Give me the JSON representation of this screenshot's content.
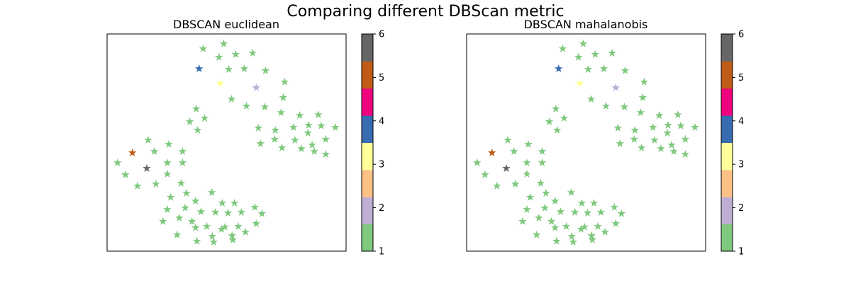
{
  "figure": {
    "suptitle": "Comparing different DBScan metric"
  },
  "chart_data": [
    {
      "type": "scatter",
      "title": "DBSCAN euclidean",
      "marker": "star",
      "xlim": [
        0,
        100
      ],
      "ylim": [
        0,
        100
      ],
      "xticks": [],
      "yticks": [],
      "colorbar": {
        "min": 1,
        "max": 6,
        "ticks": [
          "1",
          "2",
          "3",
          "4",
          "5",
          "6"
        ],
        "colors": [
          "#7fc97f",
          "#beaed4",
          "#fdc086",
          "#ffff99",
          "#386cb0",
          "#f0027f",
          "#bf5b17",
          "#666666"
        ]
      },
      "points": [
        [
          40.2,
          93.2,
          1
        ],
        [
          48.8,
          95.5,
          1
        ],
        [
          46.8,
          89.3,
          1
        ],
        [
          53.8,
          90.6,
          1
        ],
        [
          60.9,
          91.2,
          1
        ],
        [
          50.9,
          83.7,
          1
        ],
        [
          57.4,
          84.0,
          1
        ],
        [
          66.3,
          83.1,
          1
        ],
        [
          74.3,
          77.9,
          1
        ],
        [
          73.7,
          70.7,
          1
        ],
        [
          52.1,
          70.0,
          1
        ],
        [
          58.3,
          66.8,
          1
        ],
        [
          66.0,
          66.4,
          1
        ],
        [
          72.8,
          63.8,
          1
        ],
        [
          80.6,
          62.5,
          1
        ],
        [
          88.4,
          62.8,
          1
        ],
        [
          84.3,
          58.0,
          1
        ],
        [
          89.6,
          57.7,
          1
        ],
        [
          95.5,
          57.0,
          1
        ],
        [
          70.4,
          55.7,
          1
        ],
        [
          63.3,
          56.7,
          1
        ],
        [
          78.0,
          57.0,
          1
        ],
        [
          84.0,
          54.4,
          1
        ],
        [
          70.1,
          51.5,
          1
        ],
        [
          78.6,
          51.1,
          1
        ],
        [
          81.3,
          47.2,
          1
        ],
        [
          85.8,
          48.9,
          1
        ],
        [
          91.5,
          51.5,
          1
        ],
        [
          64.2,
          49.5,
          1
        ],
        [
          73.2,
          47.6,
          1
        ],
        [
          86.7,
          45.9,
          1
        ],
        [
          91.5,
          44.6,
          1
        ],
        [
          37.3,
          65.5,
          1
        ],
        [
          40.8,
          61.2,
          1
        ],
        [
          34.6,
          59.6,
          1
        ],
        [
          37.9,
          55.7,
          1
        ],
        [
          17.2,
          51.1,
          1
        ],
        [
          25.8,
          49.2,
          1
        ],
        [
          19.8,
          45.9,
          1
        ],
        [
          31.6,
          45.9,
          1
        ],
        [
          4.4,
          40.7,
          1
        ],
        [
          25.2,
          40.7,
          1
        ],
        [
          31.6,
          40.7,
          1
        ],
        [
          7.7,
          35.2,
          1
        ],
        [
          25.2,
          35.5,
          1
        ],
        [
          12.7,
          30.0,
          1
        ],
        [
          20.4,
          30.9,
          1
        ],
        [
          31.0,
          31.3,
          1
        ],
        [
          26.6,
          24.8,
          1
        ],
        [
          33.2,
          26.7,
          1
        ],
        [
          43.8,
          27.0,
          1
        ],
        [
          37.0,
          23.1,
          1
        ],
        [
          48.2,
          22.1,
          1
        ],
        [
          53.3,
          22.1,
          1
        ],
        [
          25.2,
          19.2,
          1
        ],
        [
          32.7,
          19.9,
          1
        ],
        [
          39.3,
          18.2,
          1
        ],
        [
          45.3,
          17.9,
          1
        ],
        [
          50.6,
          17.6,
          1
        ],
        [
          56.2,
          17.9,
          1
        ],
        [
          61.8,
          20.2,
          1
        ],
        [
          30.2,
          15.3,
          1
        ],
        [
          35.5,
          13.7,
          1
        ],
        [
          41.7,
          11.4,
          1
        ],
        [
          49.3,
          11.1,
          1
        ],
        [
          54.9,
          11.4,
          1
        ],
        [
          62.4,
          12.7,
          1
        ],
        [
          64.8,
          17.3,
          1
        ],
        [
          23.4,
          13.7,
          1
        ],
        [
          29.3,
          7.5,
          1
        ],
        [
          37.0,
          10.8,
          1
        ],
        [
          44.0,
          6.8,
          1
        ],
        [
          47.9,
          10.1,
          1
        ],
        [
          52.3,
          7.2,
          1
        ],
        [
          57.9,
          8.8,
          1
        ],
        [
          37.6,
          4.6,
          1
        ],
        [
          44.6,
          4.2,
          1
        ],
        [
          52.6,
          5.2,
          1
        ],
        [
          38.5,
          84.0,
          4
        ],
        [
          47.3,
          77.2,
          3
        ],
        [
          62.4,
          75.3,
          2
        ],
        [
          10.6,
          45.3,
          5
        ],
        [
          16.6,
          38.1,
          6
        ]
      ]
    },
    {
      "type": "scatter",
      "title": "DBSCAN mahalanobis",
      "marker": "star",
      "xlim": [
        0,
        100
      ],
      "ylim": [
        0,
        100
      ],
      "xticks": [],
      "yticks": [],
      "colorbar": {
        "min": 1,
        "max": 6,
        "ticks": [
          "1",
          "2",
          "3",
          "4",
          "5",
          "6"
        ],
        "colors": [
          "#7fc97f",
          "#beaed4",
          "#fdc086",
          "#ffff99",
          "#386cb0",
          "#f0027f",
          "#bf5b17",
          "#666666"
        ]
      },
      "points": [
        [
          40.2,
          93.2,
          1
        ],
        [
          48.8,
          95.5,
          1
        ],
        [
          46.8,
          89.3,
          1
        ],
        [
          53.8,
          90.6,
          1
        ],
        [
          60.9,
          91.2,
          1
        ],
        [
          50.9,
          83.7,
          1
        ],
        [
          57.4,
          84.0,
          1
        ],
        [
          66.3,
          83.1,
          1
        ],
        [
          74.3,
          77.9,
          1
        ],
        [
          73.7,
          70.7,
          1
        ],
        [
          52.1,
          70.0,
          1
        ],
        [
          58.3,
          66.8,
          1
        ],
        [
          66.0,
          66.4,
          1
        ],
        [
          72.8,
          63.8,
          1
        ],
        [
          80.6,
          62.5,
          1
        ],
        [
          88.4,
          62.8,
          1
        ],
        [
          84.3,
          58.0,
          1
        ],
        [
          89.6,
          57.7,
          1
        ],
        [
          95.5,
          57.0,
          1
        ],
        [
          70.4,
          55.7,
          1
        ],
        [
          63.3,
          56.7,
          1
        ],
        [
          78.0,
          57.0,
          1
        ],
        [
          84.0,
          54.4,
          1
        ],
        [
          70.1,
          51.5,
          1
        ],
        [
          78.6,
          51.1,
          1
        ],
        [
          81.3,
          47.2,
          1
        ],
        [
          85.8,
          48.9,
          1
        ],
        [
          91.5,
          51.5,
          1
        ],
        [
          64.2,
          49.5,
          1
        ],
        [
          73.2,
          47.6,
          1
        ],
        [
          86.7,
          45.9,
          1
        ],
        [
          91.5,
          44.6,
          1
        ],
        [
          37.3,
          65.5,
          1
        ],
        [
          40.8,
          61.2,
          1
        ],
        [
          34.6,
          59.6,
          1
        ],
        [
          37.9,
          55.7,
          1
        ],
        [
          17.2,
          51.1,
          1
        ],
        [
          25.8,
          49.2,
          1
        ],
        [
          19.8,
          45.9,
          1
        ],
        [
          31.6,
          45.9,
          1
        ],
        [
          4.4,
          40.7,
          1
        ],
        [
          25.2,
          40.7,
          1
        ],
        [
          31.6,
          40.7,
          1
        ],
        [
          7.7,
          35.2,
          1
        ],
        [
          25.2,
          35.5,
          1
        ],
        [
          12.7,
          30.0,
          1
        ],
        [
          20.4,
          30.9,
          1
        ],
        [
          31.0,
          31.3,
          1
        ],
        [
          26.6,
          24.8,
          1
        ],
        [
          33.2,
          26.7,
          1
        ],
        [
          43.8,
          27.0,
          1
        ],
        [
          37.0,
          23.1,
          1
        ],
        [
          48.2,
          22.1,
          1
        ],
        [
          53.3,
          22.1,
          1
        ],
        [
          25.2,
          19.2,
          1
        ],
        [
          32.7,
          19.9,
          1
        ],
        [
          39.3,
          18.2,
          1
        ],
        [
          45.3,
          17.9,
          1
        ],
        [
          50.6,
          17.6,
          1
        ],
        [
          56.2,
          17.9,
          1
        ],
        [
          61.8,
          20.2,
          1
        ],
        [
          30.2,
          15.3,
          1
        ],
        [
          35.5,
          13.7,
          1
        ],
        [
          41.7,
          11.4,
          1
        ],
        [
          49.3,
          11.1,
          1
        ],
        [
          54.9,
          11.4,
          1
        ],
        [
          62.4,
          12.7,
          1
        ],
        [
          64.8,
          17.3,
          1
        ],
        [
          23.4,
          13.7,
          1
        ],
        [
          29.3,
          7.5,
          1
        ],
        [
          37.0,
          10.8,
          1
        ],
        [
          44.0,
          6.8,
          1
        ],
        [
          47.9,
          10.1,
          1
        ],
        [
          52.3,
          7.2,
          1
        ],
        [
          57.9,
          8.8,
          1
        ],
        [
          37.6,
          4.6,
          1
        ],
        [
          44.6,
          4.2,
          1
        ],
        [
          52.6,
          5.2,
          1
        ],
        [
          38.5,
          84.0,
          4
        ],
        [
          47.3,
          77.2,
          3
        ],
        [
          62.4,
          75.3,
          2
        ],
        [
          10.6,
          45.3,
          5
        ],
        [
          16.6,
          38.1,
          6
        ]
      ]
    }
  ]
}
